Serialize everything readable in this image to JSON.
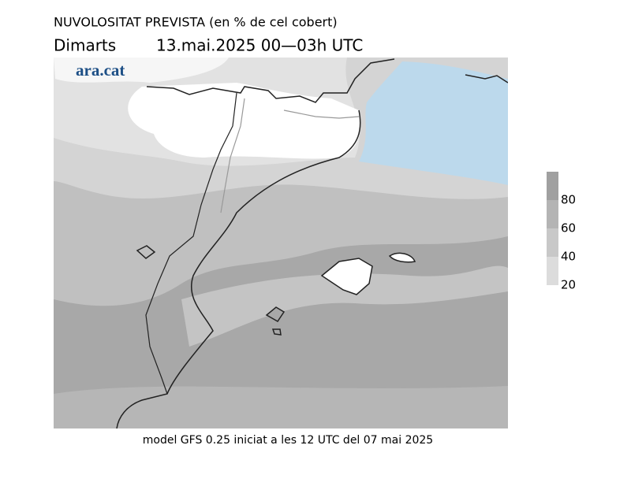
{
  "header": {
    "title": "NUVOLOSITAT PREVISTA (en % de cel cobert)",
    "day": "Dimarts",
    "date": "13.mai.2025 00—03h UTC"
  },
  "logo": "ara.cat",
  "legend": {
    "ticks": [
      80,
      60,
      40,
      20
    ]
  },
  "footer": "model GFS 0.25 iniciat a les 12 UTC del 07 mai 2025"
}
